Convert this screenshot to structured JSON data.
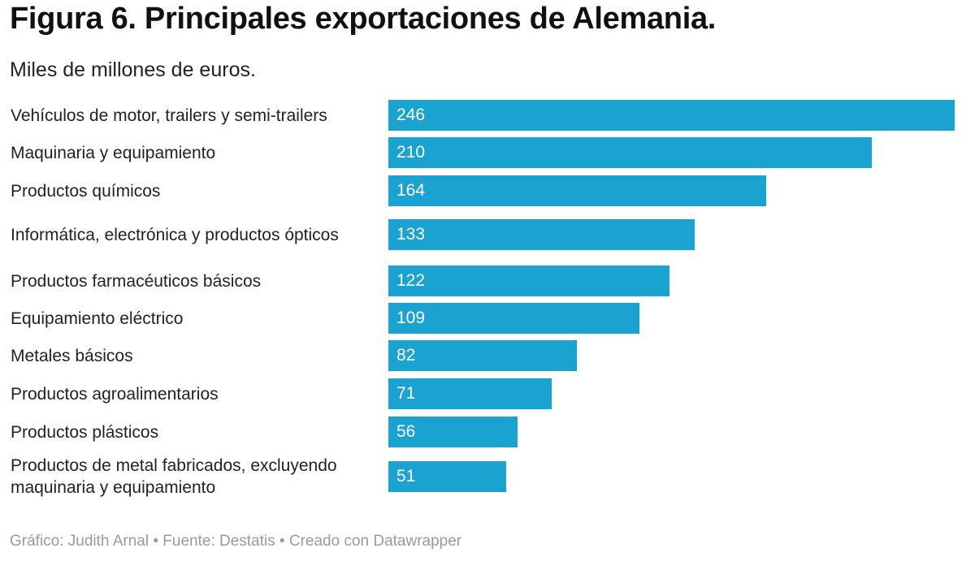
{
  "header": {
    "title": "Figura 6. Principales exportaciones de Alemania.",
    "subtitle": "Miles de millones de euros."
  },
  "chart_data": {
    "type": "bar",
    "orientation": "horizontal",
    "title": "Figura 6. Principales exportaciones de Alemania.",
    "subtitle": "Miles de millones de euros.",
    "categories": [
      "Vehículos de motor, trailers y semi-trailers",
      "Maquinaria y equipamiento",
      "Productos químicos",
      "Informática, electrónica y productos ópticos",
      "Productos farmacéuticos básicos",
      "Equipamiento eléctrico",
      "Metales básicos",
      "Productos agroalimentarios",
      "Productos plásticos",
      "Productos de metal fabricados, excluyendo maquinaria y equipamiento"
    ],
    "values": [
      246,
      210,
      164,
      133,
      122,
      109,
      82,
      71,
      56,
      51
    ],
    "value_labels": [
      "246",
      "210",
      "164",
      "133",
      "122",
      "109",
      "82",
      "71",
      "56",
      "51"
    ],
    "xlim": [
      0,
      246
    ],
    "bar_color": "#1aa2d0",
    "grid": false,
    "legend": "none"
  },
  "footer": {
    "credit": "Gráfico: Judith Arnal • Fuente: Destatis • Creado con Datawrapper"
  }
}
